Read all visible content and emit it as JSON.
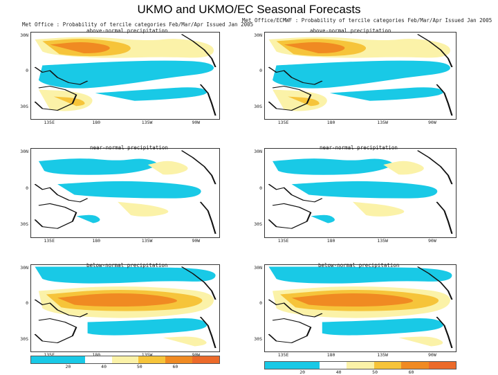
{
  "slide": {
    "title": "UKMO and UKMO/EC Seasonal Forecasts"
  },
  "columns": [
    {
      "header": "Met Office : Probability of tercile categories Feb/Mar/Apr Issued Jan 2005"
    },
    {
      "header": "Met Office/ECMWF : Probability of tercile categories Feb/Mar/Apr Issued Jan 2005"
    }
  ],
  "categories": [
    "above-normal precipitation",
    "near-normal precipitation",
    "below-normal precipitation"
  ],
  "axes": {
    "lat_labels": [
      "30N",
      "0",
      "30S"
    ],
    "lon_labels": [
      "135E",
      "180",
      "135W",
      "90W"
    ]
  },
  "colors": {
    "cyan": "#19c9e6",
    "light_yellow": "#fbf2a8",
    "yellow": "#f6c43a",
    "orange": "#f08a22",
    "deep_orange": "#ec6a2a"
  },
  "legends": [
    {
      "ticks": [
        "20",
        "40",
        "50",
        "60"
      ]
    },
    {
      "ticks": [
        "20",
        "40",
        "50",
        "60"
      ]
    }
  ]
}
